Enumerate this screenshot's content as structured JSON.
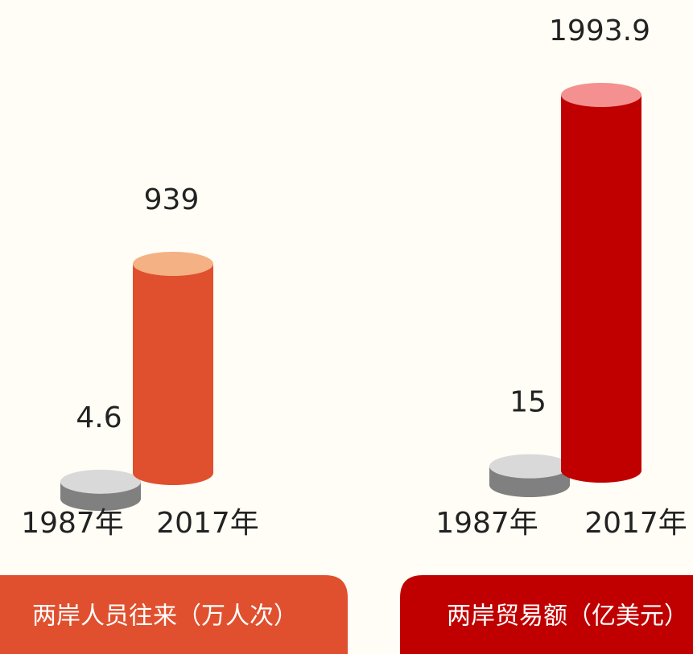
{
  "chart_data": [
    {
      "type": "cylinder",
      "title": "两岸人员往来（万人次）",
      "categories": [
        "1987年",
        "2017年"
      ],
      "values": [
        4.6,
        939
      ],
      "value_labels": [
        "4.6",
        "939"
      ],
      "colors": [
        "#808080",
        "#e0502e"
      ],
      "top_colors": [
        "#d9d9d9",
        "#f4b183"
      ],
      "title_color": "#e0502e"
    },
    {
      "type": "cylinder",
      "title": "两岸贸易额（亿美元）",
      "categories": [
        "1987年",
        "2017年"
      ],
      "values": [
        15,
        1993.9
      ],
      "value_labels": [
        "15",
        "1993.9"
      ],
      "colors": [
        "#808080",
        "#c00000"
      ],
      "top_colors": [
        "#d9d9d9",
        "#f4908f"
      ],
      "title_color": "#c00000"
    }
  ]
}
